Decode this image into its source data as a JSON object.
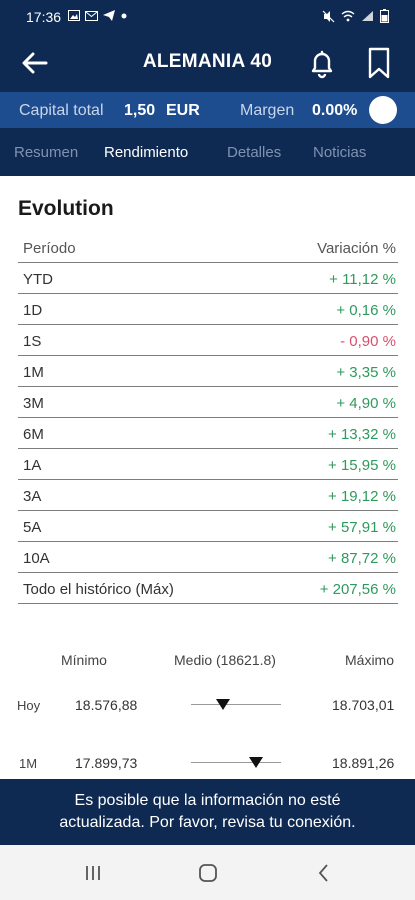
{
  "status_bar": {
    "time": "17:36",
    "left_icons": [
      "image-icon",
      "gmail-icon",
      "telegram-icon",
      "dot-icon"
    ],
    "right_icons": [
      "mute-icon",
      "wifi-icon",
      "signal-icon",
      "battery-icon"
    ]
  },
  "header": {
    "title": "ALEMANIA 40"
  },
  "capital": {
    "total_label": "Capital total",
    "total_value": "1,50",
    "currency": "EUR",
    "margin_label": "Margen",
    "margin_value": "0.00%"
  },
  "tabs": [
    {
      "label": "Resumen",
      "active": false
    },
    {
      "label": "Rendimiento",
      "active": true
    },
    {
      "label": "Detalles",
      "active": false
    },
    {
      "label": "Noticias",
      "active": false
    }
  ],
  "evolution": {
    "title": "Evolution",
    "col_period": "Período",
    "col_change": "Variación %",
    "rows": [
      {
        "period": "YTD",
        "change": "+ 11,12 %",
        "sign": "pos"
      },
      {
        "period": "1D",
        "change": "+ 0,16 %",
        "sign": "pos"
      },
      {
        "period": "1S",
        "change": "- 0,90 %",
        "sign": "neg"
      },
      {
        "period": "1M",
        "change": "+ 3,35 %",
        "sign": "pos"
      },
      {
        "period": "3M",
        "change": "+ 4,90 %",
        "sign": "pos"
      },
      {
        "period": "6M",
        "change": "+ 13,32 %",
        "sign": "pos"
      },
      {
        "period": "1A",
        "change": "+ 15,95 %",
        "sign": "pos"
      },
      {
        "period": "3A",
        "change": "+ 19,12 %",
        "sign": "pos"
      },
      {
        "period": "5A",
        "change": "+ 57,91 %",
        "sign": "pos"
      },
      {
        "period": "10A",
        "change": "+ 87,72 %",
        "sign": "pos"
      },
      {
        "period": "Todo el histórico (Máx)",
        "change": "+ 207,56 %",
        "sign": "pos"
      }
    ]
  },
  "range": {
    "min_label": "Mínimo",
    "mid_label": "Medio (18621.8)",
    "max_label": "Máximo",
    "rows": [
      {
        "label": "Hoy",
        "min": "18.576,88",
        "max": "18.703,01",
        "level": 0.35
      },
      {
        "label": "1M",
        "min": "17.899,73",
        "max": "18.891,26",
        "level": 0.72
      }
    ]
  },
  "banner": {
    "line1": "Es posible que la información no esté",
    "line2": "actualizada. Por favor, revisa tu conexión."
  },
  "colors": {
    "header_bg": "#0f2a52",
    "capital_bar_bg": "#1d4c8f",
    "positive": "#2e9a5c",
    "negative": "#d9506a"
  }
}
